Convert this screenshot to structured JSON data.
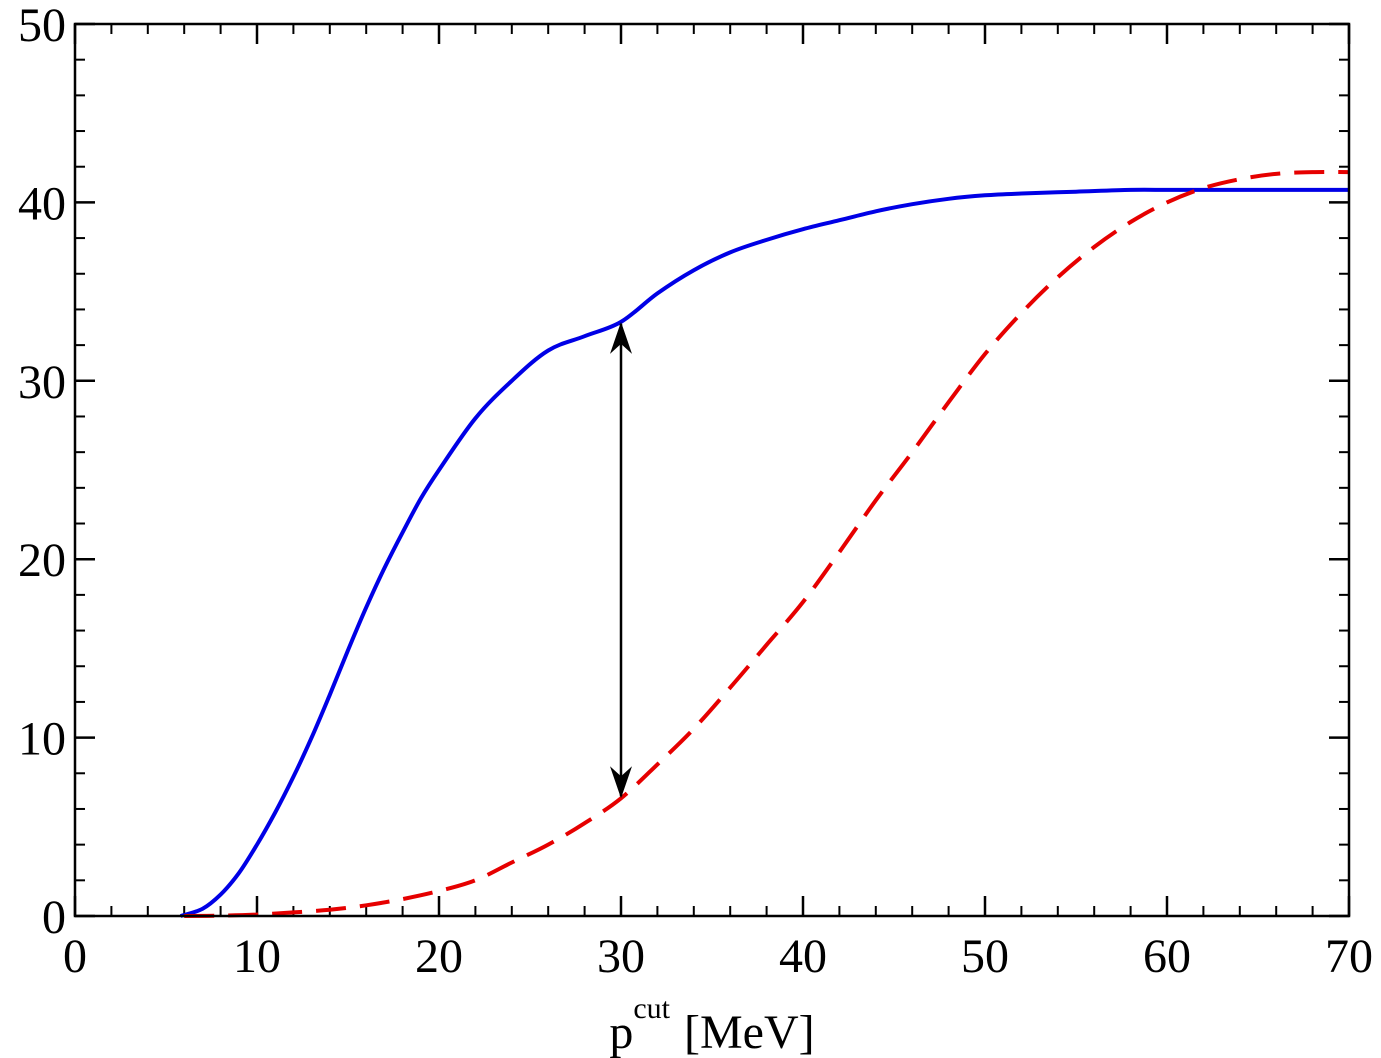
{
  "chart_data": {
    "type": "line",
    "title": "",
    "xlabel": {
      "base": "p",
      "superscript": "cut",
      "unit": "[MeV]"
    },
    "ylabel": "",
    "xlim": [
      0,
      70
    ],
    "ylim": [
      0,
      50
    ],
    "x_ticks": [
      0,
      10,
      20,
      30,
      40,
      50,
      60,
      70
    ],
    "y_ticks": [
      0,
      10,
      20,
      30,
      40,
      50
    ],
    "x_minor_step": 2,
    "y_minor_step": 2,
    "grid": false,
    "series": [
      {
        "color": "#0000e6",
        "style": "solid",
        "x": [
          5.8,
          7,
          8,
          9,
          10,
          11,
          12,
          13,
          14,
          15,
          16,
          17,
          18,
          19,
          20,
          22,
          24,
          26,
          28,
          30,
          32,
          34,
          36,
          38,
          40,
          42,
          44,
          46,
          48,
          50,
          52,
          55,
          58,
          60,
          62,
          65,
          68,
          70
        ],
        "y": [
          0,
          0.4,
          1.2,
          2.4,
          4.0,
          5.8,
          7.8,
          10.0,
          12.4,
          14.9,
          17.3,
          19.5,
          21.5,
          23.4,
          25.0,
          27.9,
          30.0,
          31.7,
          32.5,
          33.3,
          34.9,
          36.2,
          37.2,
          37.9,
          38.5,
          39.0,
          39.5,
          39.9,
          40.2,
          40.4,
          40.5,
          40.6,
          40.7,
          40.7,
          40.7,
          40.7,
          40.7,
          40.7
        ]
      },
      {
        "color": "#e60000",
        "style": "dashed",
        "x": [
          6,
          8,
          10,
          12,
          14,
          16,
          18,
          20,
          22,
          24,
          26,
          28,
          30,
          32,
          34,
          36,
          38,
          40,
          42,
          44,
          46,
          48,
          50,
          52,
          54,
          56,
          58,
          60,
          62,
          64,
          66,
          68,
          70
        ],
        "y": [
          0,
          0.02,
          0.08,
          0.2,
          0.35,
          0.6,
          0.95,
          1.4,
          2.0,
          3.0,
          4.0,
          5.2,
          6.6,
          8.5,
          10.5,
          12.8,
          15.2,
          17.6,
          20.4,
          23.3,
          26.0,
          28.8,
          31.5,
          33.8,
          35.8,
          37.5,
          38.9,
          40.0,
          40.8,
          41.3,
          41.6,
          41.7,
          41.7
        ]
      }
    ],
    "annotations": [
      {
        "type": "double-arrow",
        "x": 30,
        "y_from": 6.6,
        "y_to": 33.3,
        "color": "#000000"
      }
    ]
  }
}
